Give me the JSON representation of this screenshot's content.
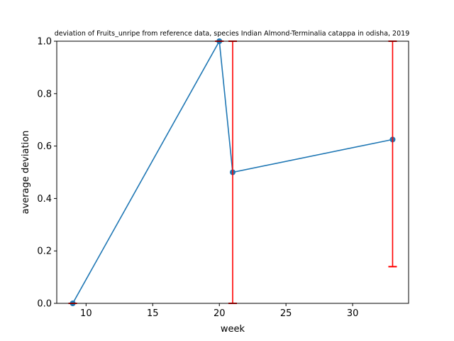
{
  "chart_data": {
    "type": "line",
    "title": "deviation of Fruits_unripe from reference data, species Indian Almond-Terminalia catappa in odisha, 2019",
    "xlabel": "week",
    "ylabel": "average deviation",
    "xlim": [
      7.8,
      34.2
    ],
    "ylim": [
      0,
      1
    ],
    "xticks": [
      10,
      15,
      20,
      25,
      30
    ],
    "yticks": [
      0.0,
      0.2,
      0.4,
      0.6,
      0.8,
      1.0
    ],
    "xtick_labels": [
      "10",
      "15",
      "20",
      "25",
      "30"
    ],
    "ytick_labels": [
      "0.0",
      "0.2",
      "0.4",
      "0.6",
      "0.8",
      "1.0"
    ],
    "grid": false,
    "series": [
      {
        "x": [
          9,
          20,
          21,
          33
        ],
        "y": [
          0.0,
          1.0,
          0.5,
          0.625
        ],
        "color": "#1f77b4",
        "marker": "circle"
      }
    ],
    "error_bars": {
      "color": "#ff0000",
      "points": [
        {
          "x": 9,
          "low": 0.0,
          "high": 0.0
        },
        {
          "x": 20,
          "low": 1.0,
          "high": 1.0
        },
        {
          "x": 21,
          "low": 0.0,
          "high": 1.0
        },
        {
          "x": 33,
          "low": 0.14,
          "high": 1.0
        }
      ]
    }
  }
}
